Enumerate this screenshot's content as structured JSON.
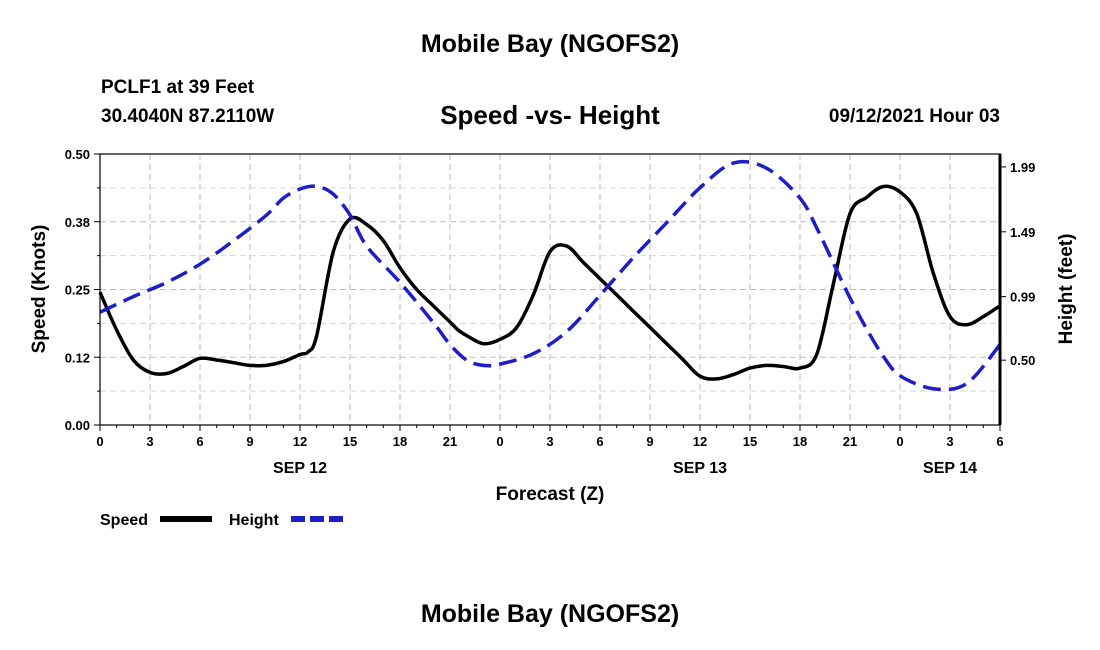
{
  "header": {
    "title": "Mobile Bay (NGOFS2)",
    "station": "PCLF1 at 39 Feet",
    "coords": "30.4040N  87.2110W",
    "timestamp": "09/12/2021 Hour 03"
  },
  "footer": {
    "title": "Mobile Bay (NGOFS2)"
  },
  "chart_data": {
    "type": "line",
    "title": "Speed -vs- Height",
    "xlabel": "Forecast (Z)",
    "ylabel": "Speed (Knots)",
    "y2label": "Height (feet)",
    "x_ticks": [
      "0",
      "3",
      "6",
      "9",
      "12",
      "15",
      "18",
      "21",
      "0",
      "3",
      "6",
      "9",
      "12",
      "15",
      "18",
      "21",
      "0",
      "3",
      "6"
    ],
    "date_labels": [
      {
        "label": "SEP 12",
        "at_hour": 12
      },
      {
        "label": "SEP 13",
        "at_hour": 36
      },
      {
        "label": "SEP 14",
        "at_hour": 51
      }
    ],
    "xlim": [
      0,
      54
    ],
    "ylim": [
      0,
      0.5
    ],
    "y_ticks": [
      "0.00",
      "0.12",
      "0.25",
      "0.38",
      "0.50"
    ],
    "y2lim": [
      0.0,
      2.09
    ],
    "y2_ticks": [
      "0.50",
      "0.99",
      "1.49",
      "1.99"
    ],
    "grid": true,
    "legend_placement": "bottom-left",
    "series": [
      {
        "name": "Speed",
        "axis": "left",
        "color": "#000000",
        "dash": "solid",
        "x": [
          0,
          1,
          2,
          3,
          4,
          5,
          6,
          7,
          8,
          9,
          10,
          11,
          12,
          12.5,
          13,
          14,
          15,
          16,
          17,
          18,
          19,
          20,
          21,
          21.5,
          22,
          23,
          24,
          25,
          26,
          27,
          28,
          29,
          30,
          31,
          32,
          33,
          34,
          35,
          36,
          37,
          38,
          39,
          40,
          41,
          42,
          43,
          44,
          45,
          46,
          47,
          48,
          49,
          50,
          51,
          52,
          53,
          54
        ],
        "values": [
          0.245,
          0.175,
          0.12,
          0.097,
          0.095,
          0.108,
          0.123,
          0.12,
          0.115,
          0.11,
          0.11,
          0.117,
          0.13,
          0.135,
          0.165,
          0.32,
          0.38,
          0.37,
          0.34,
          0.29,
          0.25,
          0.22,
          0.19,
          0.175,
          0.165,
          0.15,
          0.158,
          0.18,
          0.24,
          0.32,
          0.33,
          0.3,
          0.27,
          0.24,
          0.21,
          0.18,
          0.15,
          0.12,
          0.09,
          0.085,
          0.093,
          0.105,
          0.11,
          0.108,
          0.105,
          0.13,
          0.26,
          0.39,
          0.42,
          0.44,
          0.43,
          0.39,
          0.28,
          0.2,
          0.185,
          0.2,
          0.22
        ]
      },
      {
        "name": "Height",
        "axis": "right",
        "color": "#1e1ec8",
        "dash": "dashed",
        "x": [
          0,
          2,
          4,
          6,
          8,
          10,
          11,
          12,
          13,
          14,
          15,
          16,
          18,
          20,
          21,
          22,
          23,
          24,
          26,
          28,
          30,
          32,
          34,
          36,
          38,
          40,
          42,
          43,
          44,
          45,
          46,
          47,
          48,
          50,
          52,
          54
        ],
        "values": [
          0.87,
          0.99,
          1.1,
          1.24,
          1.42,
          1.62,
          1.75,
          1.82,
          1.84,
          1.78,
          1.62,
          1.38,
          1.1,
          0.79,
          0.62,
          0.5,
          0.46,
          0.47,
          0.55,
          0.72,
          1.0,
          1.29,
          1.56,
          1.83,
          2.02,
          1.98,
          1.75,
          1.52,
          1.25,
          0.98,
          0.74,
          0.53,
          0.38,
          0.28,
          0.32,
          0.62
        ]
      }
    ]
  }
}
